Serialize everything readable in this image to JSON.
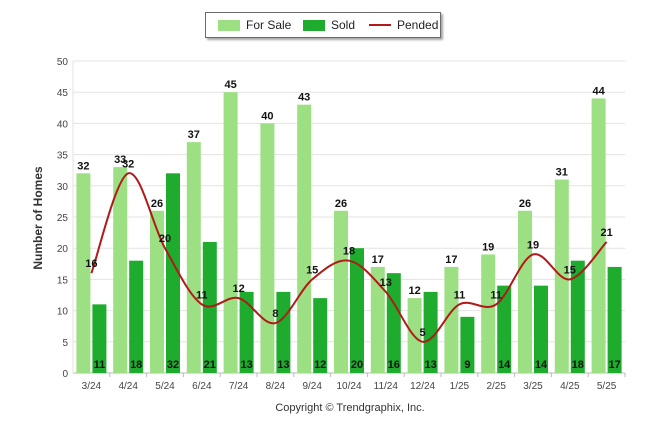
{
  "legend": {
    "for_sale": "For Sale",
    "sold": "Sold",
    "pended": "Pended"
  },
  "copyright": "Copyright © Trendgraphix, Inc.",
  "colors": {
    "for_sale": "#9ddf83",
    "sold": "#1fac2e",
    "pended": "#b11a1a"
  },
  "chart_data": {
    "type": "bar",
    "title": "",
    "xlabel": "",
    "ylabel": "Number of Homes",
    "ylim": [
      0,
      50
    ],
    "yticks": [
      0,
      5,
      10,
      15,
      20,
      25,
      30,
      35,
      40,
      45,
      50
    ],
    "grid": true,
    "legend_position": "top-center",
    "categories": [
      "3/24",
      "4/24",
      "5/24",
      "6/24",
      "7/24",
      "8/24",
      "9/24",
      "10/24",
      "11/24",
      "12/24",
      "1/25",
      "2/25",
      "3/25",
      "4/25",
      "5/25"
    ],
    "series": [
      {
        "name": "For Sale",
        "type": "bar",
        "values": [
          32,
          33,
          26,
          37,
          45,
          40,
          43,
          26,
          17,
          12,
          17,
          19,
          26,
          31,
          44
        ]
      },
      {
        "name": "Sold",
        "type": "bar",
        "values": [
          11,
          18,
          32,
          21,
          13,
          13,
          12,
          20,
          16,
          13,
          9,
          14,
          14,
          18,
          17
        ]
      },
      {
        "name": "Pended",
        "type": "line",
        "values": [
          16,
          32,
          20,
          11,
          12,
          8,
          15,
          18,
          13,
          5,
          11,
          11,
          19,
          15,
          21
        ]
      }
    ]
  }
}
